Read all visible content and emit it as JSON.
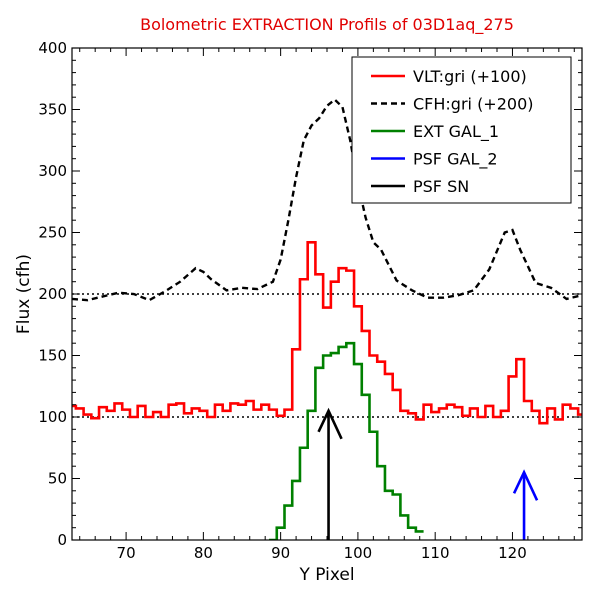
{
  "chart_data": {
    "type": "line",
    "title": "Bolometric EXTRACTION Profils of 03D1aq_275",
    "title_color": "#e00000",
    "xlabel": "Y Pixel",
    "ylabel": "Flux (cfh)",
    "xlim": [
      63,
      129
    ],
    "ylim": [
      0,
      400
    ],
    "x_ticks": [
      70,
      80,
      90,
      100,
      110,
      120
    ],
    "y_ticks": [
      0,
      50,
      100,
      150,
      200,
      250,
      300,
      350,
      400
    ],
    "legend_position": "top-right",
    "reference_lines": [
      100,
      200
    ],
    "series": [
      {
        "name": "VLT:gri (+100)",
        "color": "#ff0000",
        "style": "steps",
        "x": [
          63,
          64,
          65,
          66,
          67,
          68,
          69,
          70,
          71,
          72,
          73,
          74,
          75,
          76,
          77,
          78,
          79,
          80,
          81,
          82,
          83,
          84,
          85,
          86,
          87,
          88,
          89,
          90,
          91,
          92,
          93,
          94,
          95,
          96,
          97,
          98,
          99,
          100,
          101,
          102,
          103,
          104,
          105,
          106,
          107,
          108,
          109,
          110,
          111,
          112,
          113,
          114,
          115,
          116,
          117,
          118,
          119,
          120,
          121,
          122,
          123,
          124,
          125,
          126,
          127,
          128,
          129
        ],
        "y": [
          109,
          107,
          102,
          99,
          108,
          105,
          111,
          106,
          100,
          109,
          100,
          104,
          100,
          110,
          111,
          103,
          107,
          105,
          100,
          110,
          105,
          111,
          110,
          113,
          106,
          110,
          106,
          101,
          106,
          155,
          212,
          242,
          216,
          189,
          210,
          221,
          219,
          190,
          170,
          150,
          145,
          135,
          122,
          105,
          103,
          98,
          110,
          104,
          107,
          110,
          108,
          101,
          107,
          100,
          109,
          100,
          105,
          133,
          147,
          113,
          105,
          95,
          107,
          98,
          110,
          107,
          102
        ],
        "annotation_x": 122
      },
      {
        "name": "CFH:gri (+200)",
        "color": "#000000",
        "style": "dashed",
        "x": [
          63,
          65,
          67,
          69,
          71,
          73,
          75,
          77,
          79,
          80,
          81,
          83,
          85,
          87,
          89,
          90,
          91,
          92,
          93,
          94,
          95,
          96,
          97,
          98,
          99,
          100,
          101,
          102,
          103,
          105,
          107,
          109,
          111,
          113,
          115,
          117,
          119,
          120,
          121,
          123,
          125,
          127,
          129
        ],
        "y": [
          196,
          195,
          198,
          201,
          200,
          195,
          202,
          210,
          221,
          218,
          212,
          203,
          205,
          204,
          210,
          228,
          260,
          295,
          325,
          337,
          343,
          353,
          358,
          352,
          325,
          290,
          262,
          242,
          236,
          211,
          203,
          197,
          197,
          199,
          203,
          220,
          250,
          252,
          236,
          209,
          205,
          196,
          199
        ]
      },
      {
        "name": "EXT GAL_1",
        "color": "#008000",
        "style": "steps",
        "x": [
          89,
          90,
          91,
          92,
          93,
          94,
          95,
          96,
          97,
          98,
          99,
          100,
          101,
          102,
          103,
          104,
          105,
          106,
          107,
          108
        ],
        "y": [
          0,
          10,
          28,
          48,
          75,
          105,
          140,
          150,
          152,
          157,
          160,
          143,
          118,
          88,
          60,
          40,
          37,
          20,
          10,
          7
        ]
      },
      {
        "name": "PSF GAL_2",
        "color": "#0000ff",
        "style": "arrow",
        "x": [
          121.5,
          121.5
        ],
        "y": [
          0,
          55
        ]
      },
      {
        "name": "PSF SN",
        "color": "#000000",
        "style": "arrow",
        "x": [
          96.2,
          96.2
        ],
        "y": [
          0,
          105
        ]
      }
    ]
  }
}
